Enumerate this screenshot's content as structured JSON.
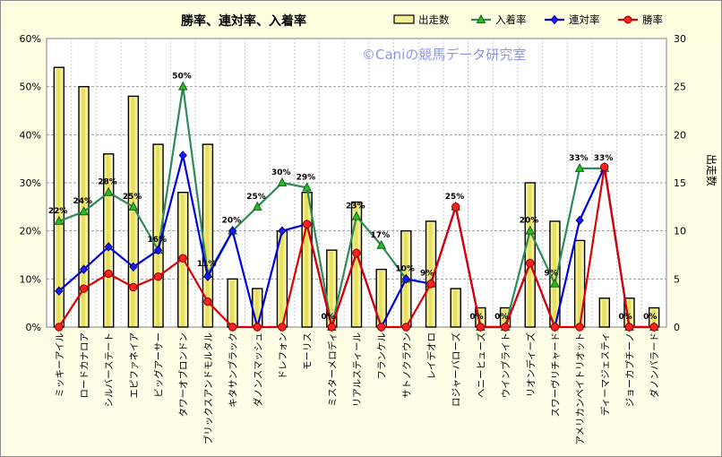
{
  "chart_data": {
    "type": "bar+line",
    "title": "勝率、連対率、入着率",
    "watermark": "©Caniの競馬データ研究室",
    "y2label": "出走数",
    "ylim": [
      0,
      60
    ],
    "y2lim": [
      0,
      30
    ],
    "y_ticks": [
      "0%",
      "10%",
      "20%",
      "30%",
      "40%",
      "50%",
      "60%"
    ],
    "y2_ticks": [
      "0",
      "5",
      "10",
      "15",
      "20",
      "25",
      "30"
    ],
    "categories": [
      "ミッキーアイル",
      "ロードカナロア",
      "シルバーステート",
      "エピファネイア",
      "ビッグアーサー",
      "タワーオブロンドン",
      "ブリックスアンドモルタル",
      "キタサンブラック",
      "ダノンスマッシュ",
      "ドレフォン",
      "モーリス",
      "ミスターメロディ",
      "リアルスティール",
      "フランケル",
      "サトノクラウン",
      "レイデオロ",
      "ロジャーバローズ",
      "ヘニーヒューズ",
      "ウインブライト",
      "リオンディーズ",
      "スワーヴリチャード",
      "アメリカンペイトリオット",
      "ディーマジェスティ",
      "ジョーカプチーノ",
      "ダノンバラード"
    ],
    "series": [
      {
        "name": "出走数",
        "axis": "right",
        "kind": "bar",
        "color": "#f3ee9a",
        "values": [
          27,
          25,
          18,
          24,
          19,
          14,
          19,
          5,
          4,
          10,
          14,
          8,
          13,
          6,
          10,
          11,
          4,
          2,
          2,
          15,
          11,
          9,
          3,
          3,
          2
        ]
      },
      {
        "name": "入着率",
        "axis": "left",
        "kind": "line",
        "color": "#2e8b57",
        "marker": "triangle",
        "values": [
          22,
          24,
          28,
          25,
          16,
          50,
          11,
          20,
          25,
          30,
          29,
          0,
          23,
          17,
          10,
          9,
          25,
          0,
          0,
          20,
          9,
          33,
          33,
          0,
          0
        ]
      },
      {
        "name": "連対率",
        "axis": "left",
        "kind": "line",
        "color": "#0000dd",
        "marker": "diamond",
        "values": [
          7.5,
          12,
          16.7,
          12.5,
          16,
          35.7,
          10.5,
          20,
          0,
          20,
          21.4,
          0,
          15.4,
          0,
          10,
          9,
          25,
          0,
          0,
          13.3,
          0,
          22.2,
          33.3,
          0,
          0
        ]
      },
      {
        "name": "勝率",
        "axis": "left",
        "kind": "line",
        "color": "#dd0000",
        "marker": "circle",
        "values": [
          0,
          8,
          11.1,
          8.3,
          10.5,
          14.3,
          5.3,
          0,
          0,
          0,
          21.4,
          0,
          15.4,
          0,
          0,
          9,
          25,
          0,
          0,
          13.3,
          0,
          0,
          33.3,
          0,
          0
        ]
      }
    ],
    "data_labels": [
      "22%",
      "24%",
      "28%",
      "25%",
      "16%",
      "50%",
      "11%",
      "20%",
      "25%",
      "30%",
      "29%",
      "0%",
      "23%",
      "17%",
      "10%",
      "9%",
      "25%",
      "0%",
      "0%",
      "20%",
      "9%",
      "33%",
      "33%",
      "0%",
      "0%"
    ],
    "grid": true,
    "legend_position": "top-right"
  }
}
